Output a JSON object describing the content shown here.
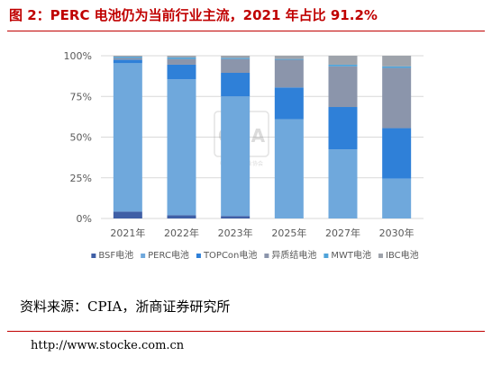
{
  "title": "图 2：PERC 电池仍为当前行业主流，2021 年占比 91.2%",
  "source": "资料来源：CPIA，浙商证券研究所",
  "url": "http://www.stocke.com.cn",
  "watermark": {
    "text": "CPIA",
    "subtext": "中国光伏行业协会"
  },
  "chart_data": {
    "type": "bar",
    "stacked": true,
    "categories": [
      "2021年",
      "2022年",
      "2023年",
      "2025年",
      "2027年",
      "2030年"
    ],
    "series": [
      {
        "name": "BSF电池",
        "color": "#3f5fa6",
        "values": [
          4.2,
          2.0,
          1.5,
          0.0,
          0.0,
          0.0
        ]
      },
      {
        "name": "PERC电池",
        "color": "#6fa8dc",
        "values": [
          91.2,
          83.5,
          73.5,
          61.0,
          42.5,
          24.5
        ]
      },
      {
        "name": "TOPCon电池",
        "color": "#2f80d8",
        "values": [
          2.2,
          9.0,
          14.5,
          19.5,
          26.0,
          31.0
        ]
      },
      {
        "name": "异质结电池",
        "color": "#8b95ab",
        "values": [
          1.0,
          3.5,
          8.5,
          17.0,
          25.0,
          37.0
        ]
      },
      {
        "name": "MWT电池",
        "color": "#4fa3d9",
        "values": [
          0.8,
          1.0,
          0.7,
          0.5,
          1.0,
          1.0
        ]
      },
      {
        "name": "IBC电池",
        "color": "#9ea3ab",
        "values": [
          0.6,
          1.0,
          1.3,
          2.0,
          5.5,
          6.5
        ]
      }
    ],
    "y_ticks": [
      "0%",
      "25%",
      "50%",
      "75%",
      "100%"
    ],
    "ylim": [
      0,
      100
    ],
    "grid": true,
    "legend": "bottom"
  }
}
